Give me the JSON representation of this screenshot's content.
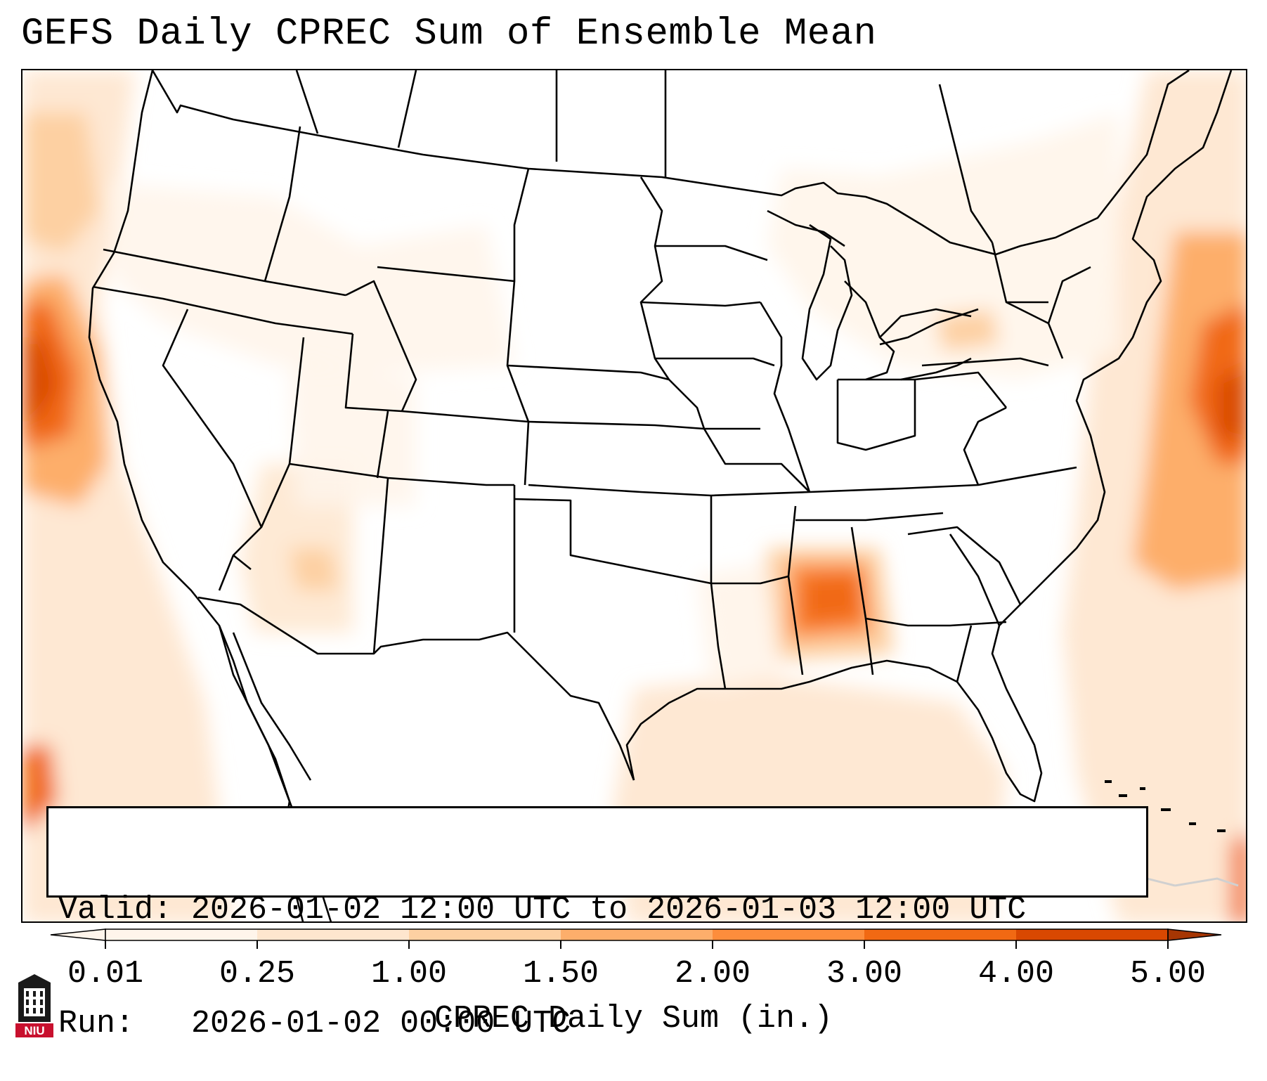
{
  "title": "GEFS Daily CPREC Sum of Ensemble Mean",
  "info": {
    "valid_line": "Valid: 2026-01-02 12:00 UTC to 2026-01-03 12:00 UTC",
    "run_line": "Run:   2026-01-02 00:00 UTC"
  },
  "colorbar": {
    "label": "CPREC Daily Sum (in.)",
    "ticks": [
      "0.01",
      "0.25",
      "1.00",
      "1.50",
      "2.00",
      "3.00",
      "4.00",
      "5.00"
    ],
    "colors": [
      "#fff5eb",
      "#fee6ce",
      "#fdd0a2",
      "#fdae6b",
      "#fd8d3c",
      "#f16913",
      "#d94801",
      "#a63603"
    ]
  },
  "logo": {
    "text": "NIU"
  },
  "map": {
    "region": "Contiguous United States",
    "projection": "Lambert Conformal"
  }
}
